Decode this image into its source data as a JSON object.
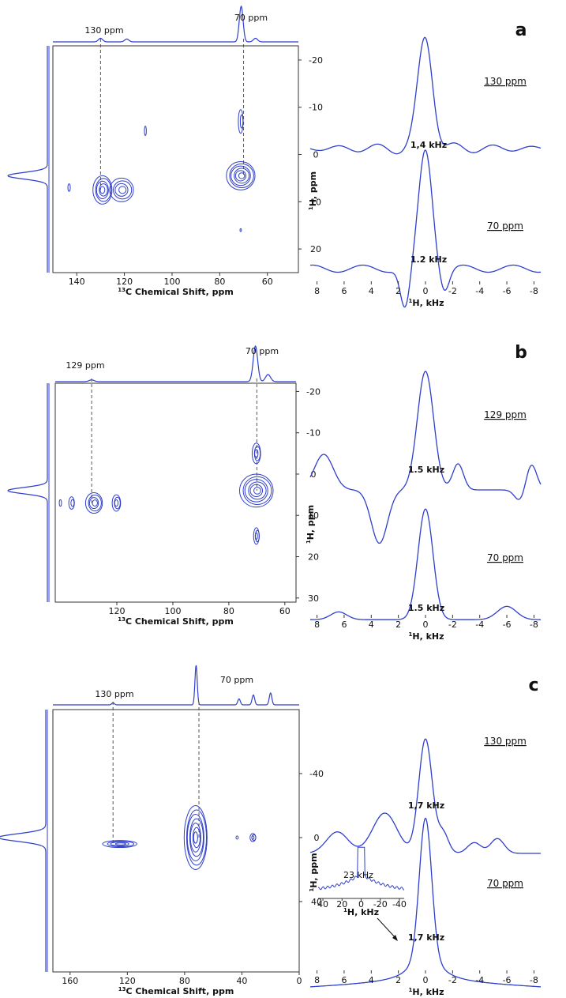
{
  "colors": {
    "trace": "#2f3fcc",
    "axis": "#333333",
    "dash": "#555555"
  },
  "chart_data": [
    {
      "panel": "a",
      "type": "2d-nmr",
      "xlabel_sup": "13",
      "xlabel": "C Chemical Shift, ppm",
      "ylabel_sup": "1",
      "ylabel": "H, ppm",
      "xlim": [
        150,
        47
      ],
      "ylim": [
        -23,
        25
      ],
      "xticks": [
        140,
        120,
        100,
        80,
        60
      ],
      "yticks": [
        -20,
        -10,
        0,
        10,
        20
      ],
      "dash_lines": [
        130,
        70
      ],
      "top_labels": [
        "130 ppm",
        "70 ppm"
      ],
      "top_peaks": [
        {
          "x": 130,
          "h": 0.1
        },
        {
          "x": 119,
          "h": 0.08
        },
        {
          "x": 71,
          "h": 1.0
        },
        {
          "x": 65,
          "h": 0.1
        }
      ],
      "left_peak": {
        "y": 4.5,
        "h": 1.0
      },
      "contours": [
        {
          "x": 129,
          "y": 7.5,
          "rx": 4,
          "ry": 3,
          "n": 5
        },
        {
          "x": 121,
          "y": 7.5,
          "rx": 5,
          "ry": 2.5,
          "n": 4
        },
        {
          "x": 143,
          "y": 7,
          "rx": 0.5,
          "ry": 0.8,
          "n": 1
        },
        {
          "x": 71,
          "y": 4.5,
          "rx": 6,
          "ry": 3,
          "n": 6
        },
        {
          "x": 71,
          "y": -7,
          "rx": 1,
          "ry": 2.5,
          "n": 2
        },
        {
          "x": 111,
          "y": -5,
          "rx": 0.4,
          "ry": 1,
          "n": 1
        },
        {
          "x": 71,
          "y": 16,
          "rx": 0.3,
          "ry": 0.3,
          "n": 1
        }
      ],
      "slices": [
        {
          "label": "130 ppm",
          "width_label": "1,4 kHz",
          "profile": "a130"
        },
        {
          "label": "70 ppm",
          "width_label": "1.2 kHz",
          "profile": "a70"
        }
      ],
      "rxlabel_sup": "1",
      "rxlabel": "H, kHz",
      "rxticks": [
        8,
        6,
        4,
        2,
        0,
        -2,
        -4,
        -6,
        -8
      ]
    },
    {
      "panel": "b",
      "type": "2d-nmr",
      "xlabel_sup": "13",
      "xlabel": "C Chemical Shift, ppm",
      "ylabel_sup": "1",
      "ylabel": "H, ppm",
      "xlim": [
        142,
        56
      ],
      "ylim": [
        -22,
        31
      ],
      "xticks": [
        120,
        100,
        80,
        60
      ],
      "yticks": [
        -20,
        -10,
        0,
        10,
        20,
        30
      ],
      "dash_lines": [
        129,
        70
      ],
      "top_labels": [
        "129 ppm",
        "70 ppm"
      ],
      "top_peaks": [
        {
          "x": 129,
          "h": 0.05
        },
        {
          "x": 70.5,
          "h": 1.0
        },
        {
          "x": 66,
          "h": 0.2
        }
      ],
      "left_peak": {
        "y": 4,
        "h": 1.0
      },
      "contours": [
        {
          "x": 128,
          "y": 7,
          "rx": 3,
          "ry": 2.5,
          "n": 4
        },
        {
          "x": 136,
          "y": 7,
          "rx": 1,
          "ry": 1.5,
          "n": 2
        },
        {
          "x": 120,
          "y": 7,
          "rx": 1.5,
          "ry": 2,
          "n": 3
        },
        {
          "x": 140,
          "y": 7,
          "rx": 0.4,
          "ry": 0.8,
          "n": 1
        },
        {
          "x": 70,
          "y": 4,
          "rx": 6,
          "ry": 4,
          "n": 6
        },
        {
          "x": 70,
          "y": -5,
          "rx": 1.5,
          "ry": 2.5,
          "n": 3
        },
        {
          "x": 70,
          "y": 15,
          "rx": 1,
          "ry": 2,
          "n": 3
        }
      ],
      "slices": [
        {
          "label": "129 ppm",
          "width_label": "1.5 kHz",
          "profile": "b129"
        },
        {
          "label": "70 ppm",
          "width_label": "1.5 kHz",
          "profile": "b70"
        }
      ],
      "rxlabel_sup": "1",
      "rxlabel": "H, kHz",
      "rxticks": [
        8,
        6,
        4,
        2,
        0,
        -2,
        -4,
        -6,
        -8
      ]
    },
    {
      "panel": "c",
      "type": "2d-nmr",
      "xlabel_sup": "13",
      "xlabel": "C Chemical Shift, ppm",
      "ylabel_sup": "1",
      "ylabel": "H, ppm",
      "xlim": [
        172,
        0
      ],
      "ylim": [
        -80,
        84
      ],
      "xticks": [
        160,
        120,
        80,
        40,
        0
      ],
      "yticks": [
        -40,
        0,
        40
      ],
      "dash_lines": [
        130,
        70
      ],
      "top_labels": [
        "130 ppm",
        "70 ppm"
      ],
      "top_peaks": [
        {
          "x": 130,
          "h": 0.05
        },
        {
          "x": 72,
          "h": 1.0
        },
        {
          "x": 42,
          "h": 0.15
        },
        {
          "x": 32,
          "h": 0.25
        },
        {
          "x": 20,
          "h": 0.3
        }
      ],
      "left_peak": {
        "y": 0,
        "h": 1.0
      },
      "contours": [
        {
          "x": 125,
          "y": 4,
          "rx": 12,
          "ry": 2.2,
          "n": 4
        },
        {
          "x": 72,
          "y": 0,
          "rx": 8,
          "ry": 20,
          "n": 7
        },
        {
          "x": 43,
          "y": 0,
          "rx": 0.8,
          "ry": 1,
          "n": 1
        },
        {
          "x": 32,
          "y": 0,
          "rx": 2,
          "ry": 2.5,
          "n": 3
        }
      ],
      "slices": [
        {
          "label": "130 ppm",
          "width_label": "1,7 kHz",
          "profile": "c130"
        },
        {
          "label": "70 ppm",
          "width_label": "1,7 kHz",
          "profile": "c70"
        }
      ],
      "inset": {
        "label": "23 kHz",
        "xlabel_sup": "1",
        "xlabel": "H, kHz",
        "xticks": [
          40,
          20,
          0,
          -20,
          -40
        ]
      },
      "rxlabel_sup": "1",
      "rxlabel": "H, kHz",
      "rxticks": [
        8,
        6,
        4,
        2,
        0,
        -2,
        -4,
        -6,
        -8
      ]
    }
  ]
}
